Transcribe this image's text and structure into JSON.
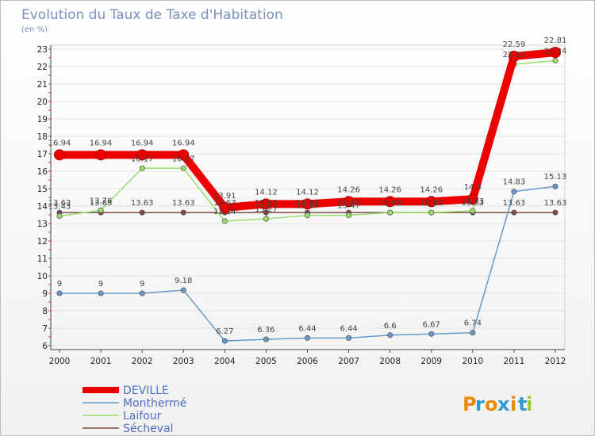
{
  "chart_data": {
    "type": "line",
    "title": "Evolution du Taux de Taxe d'Habitation",
    "unit_label": "(en %)",
    "xlabel": "",
    "ylabel": "",
    "x": [
      2000,
      2001,
      2002,
      2003,
      2004,
      2005,
      2006,
      2007,
      2008,
      2009,
      2010,
      2011,
      2012
    ],
    "ylim": [
      6,
      23
    ],
    "yticks": [
      6,
      7,
      8,
      9,
      10,
      11,
      12,
      13,
      14,
      15,
      16,
      17,
      18,
      19,
      20,
      21,
      22,
      23
    ],
    "grid": true,
    "legend": "bottom-left",
    "series": [
      {
        "name": "Sécheval",
        "color": "#7a4a4a",
        "width": "thin",
        "values": [
          13.63,
          13.63,
          13.63,
          13.63,
          13.63,
          13.63,
          13.63,
          13.63,
          13.63,
          13.63,
          13.63,
          13.63,
          13.63
        ],
        "labels": [
          "13.63",
          "13.63",
          "13.63",
          "13.63",
          "13.63",
          "13.63",
          "13.63",
          "13.63",
          "13.63",
          "13.63",
          "13.63",
          "13.63",
          "13.63"
        ]
      },
      {
        "name": "Monthermé",
        "color": "#6699cc",
        "width": "thin",
        "values": [
          9,
          9,
          9,
          9.18,
          6.27,
          6.36,
          6.44,
          6.44,
          6.6,
          6.67,
          6.74,
          14.83,
          15.13
        ],
        "labels": [
          "9",
          "9",
          "9",
          "9.18",
          "6.27",
          "6.36",
          "6.44",
          "6.44",
          "6.6",
          "6.67",
          "6.74",
          "14.83",
          "15.13"
        ]
      },
      {
        "name": "Laifour",
        "color": "#99dd66",
        "width": "thin",
        "values": [
          13.43,
          13.76,
          16.17,
          16.17,
          13.14,
          13.27,
          13.47,
          13.47,
          13.63,
          13.63,
          13.73,
          22.13,
          22.34
        ],
        "labels": [
          "13.43",
          "13.76",
          "16.17",
          "16.17",
          "13.14",
          "13.27",
          "13.47",
          "13.47",
          "13.63",
          "13.63",
          "13.73",
          "22.13",
          "22.34"
        ]
      },
      {
        "name": "DEVILLE",
        "color": "#ee0000",
        "width": "thick",
        "values": [
          16.94,
          16.94,
          16.94,
          16.94,
          13.91,
          14.12,
          14.12,
          14.26,
          14.26,
          14.26,
          14.4,
          22.59,
          22.81
        ],
        "labels": [
          "16.94",
          "16.94",
          "16.94",
          "16.94",
          "13.91",
          "14.12",
          "14.12",
          "14.26",
          "14.26",
          "14.26",
          "14.4",
          "22.59",
          "22.81"
        ]
      }
    ],
    "legend_order": [
      "DEVILLE",
      "Monthermé",
      "Laifour",
      "Sécheval"
    ]
  },
  "logo": {
    "letters": [
      "P",
      "r",
      "o",
      "x",
      "i",
      "t",
      "i"
    ],
    "colors": [
      "#ee8800",
      "#3399cc",
      "#ee8800",
      "#3399cc",
      "#ee8800",
      "#3399cc",
      "#99cc33"
    ]
  }
}
